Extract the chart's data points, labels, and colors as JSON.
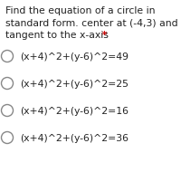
{
  "title_lines": [
    "Find the equation of a circle in",
    "standard form. center at (-4,3) and",
    "tangent to the x-axis"
  ],
  "title_asterisk": " *",
  "options": [
    "(x+4)^2+(y-6)^2=49",
    "(x+4)^2+(y-6)^2=25",
    "(x+4)^2+(y-6)^2=16",
    "(x+4)^2+(y-6)^2=36"
  ],
  "bg_color": "#ffffff",
  "text_color": "#222222",
  "asterisk_color": "#cc0000",
  "font_size_title": 7.8,
  "font_size_options": 7.8,
  "circle_lw": 1.0,
  "circle_edge_color": "#888888",
  "circle_face_color": "#ffffff"
}
